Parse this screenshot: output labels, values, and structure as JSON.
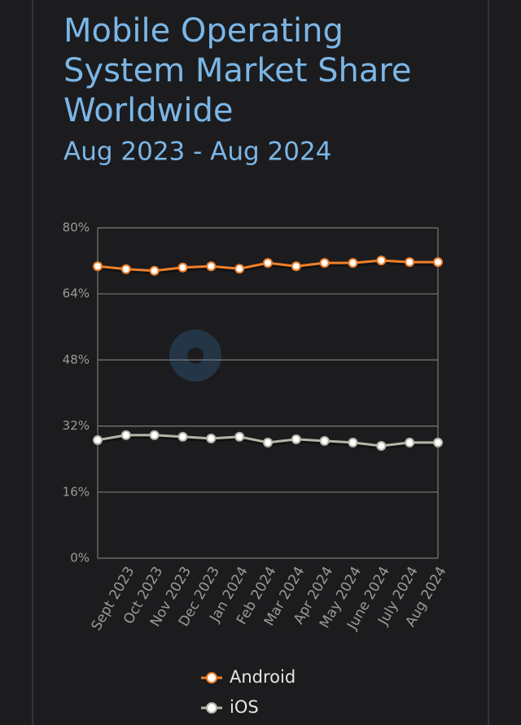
{
  "chart_data": {
    "type": "line",
    "title_lines": [
      "Mobile Operating",
      "System Market Share",
      "Worldwide"
    ],
    "subtitle": "Aug 2023 - Aug 2024",
    "categories": [
      null,
      "Sept 2023",
      "Oct 2023",
      "Nov 2023",
      "Dec 2023",
      "Jan 2024",
      "Feb 2024",
      "Mar 2024",
      "Apr 2024",
      "May 2024",
      "June 2024",
      "July 2024",
      "Aug 2024"
    ],
    "series": [
      {
        "name": "Android",
        "color": "#f07f2a",
        "values": [
          70.7,
          70.0,
          69.6,
          70.4,
          70.7,
          70.1,
          71.5,
          70.7,
          71.5,
          71.5,
          72.1,
          71.7,
          71.7
        ]
      },
      {
        "name": "iOS",
        "color": "#b5b5a8",
        "values": [
          28.6,
          29.8,
          29.8,
          29.4,
          29.0,
          29.4,
          28.0,
          28.8,
          28.4,
          28.0,
          27.2,
          28.0,
          28.0
        ]
      }
    ],
    "ylim": [
      0,
      80
    ],
    "yticks": [
      {
        "value": 0,
        "label": "0%"
      },
      {
        "value": 16,
        "label": "16%"
      },
      {
        "value": 32,
        "label": "32%"
      },
      {
        "value": 48,
        "label": "48%"
      },
      {
        "value": 64,
        "label": "64%"
      },
      {
        "value": 80,
        "label": "80%"
      }
    ],
    "grid": true,
    "legend": "bottom"
  }
}
